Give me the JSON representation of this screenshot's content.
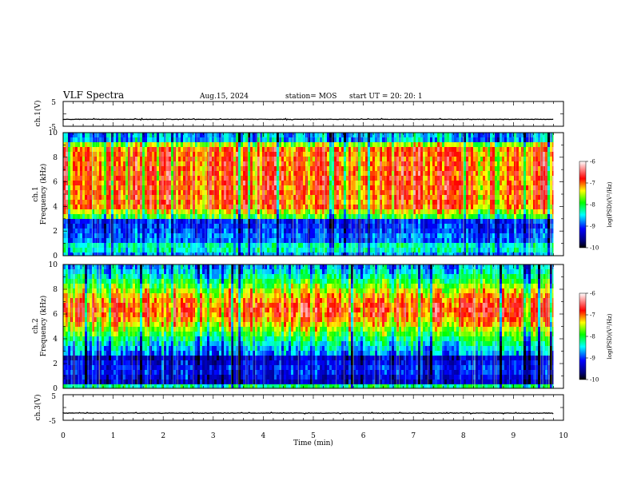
{
  "header": {
    "title": "VLF Spectra",
    "date": "Aug.15, 2024",
    "station": "station= MOS",
    "start_ut": "start  UT  =   20: 20: 1"
  },
  "chart_data": [
    {
      "type": "line",
      "panel": "ch1-voltage",
      "ylabel": "ch.1(V)",
      "ylim": [
        -5,
        5
      ],
      "yticks": [
        "5",
        "-5"
      ],
      "xlim": [
        0,
        10
      ],
      "series": [
        {
          "x": [
            0,
            9.8
          ],
          "values": [
            -2.2,
            -2.2
          ]
        }
      ]
    },
    {
      "type": "heatmap",
      "panel": "ch1-spectrogram",
      "ylabel_line1": "ch.1",
      "ylabel_line2": "Frequency (kHz)",
      "ylim": [
        0,
        10
      ],
      "yticks": [
        "0",
        "2",
        "4",
        "6",
        "8",
        "10"
      ],
      "xlim": [
        0,
        10
      ],
      "data_end_min": 9.8,
      "colorbar": {
        "label": "log(PSD)(V²/Hz)",
        "range": [
          -10,
          -6
        ],
        "ticks": [
          "-6",
          "-7",
          "-8",
          "-9",
          "-10"
        ]
      }
    },
    {
      "type": "heatmap",
      "panel": "ch2-spectrogram",
      "ylabel_line1": "ch.2",
      "ylabel_line2": "Frequency (kHz)",
      "ylim": [
        0,
        10
      ],
      "yticks": [
        "0",
        "2",
        "4",
        "6",
        "8",
        "10"
      ],
      "xlim": [
        0,
        10
      ],
      "data_end_min": 9.8,
      "colorbar": {
        "label": "log(PSD)(V²/Hz)",
        "range": [
          -10,
          -6
        ],
        "ticks": [
          "-6",
          "-7",
          "-8",
          "-9",
          "-10"
        ]
      }
    },
    {
      "type": "line",
      "panel": "ch3-voltage",
      "ylabel": "ch.3(V)",
      "ylim": [
        -5,
        5
      ],
      "yticks": [
        "5",
        "-5"
      ],
      "xlim": [
        0,
        10
      ],
      "xlabel": "Time  (min)",
      "xticks": [
        "0",
        "1",
        "2",
        "3",
        "4",
        "5",
        "6",
        "7",
        "8",
        "9",
        "10"
      ],
      "series": [
        {
          "x": [
            0,
            9.8
          ],
          "values": [
            -2.2,
            -2.2
          ]
        }
      ]
    }
  ],
  "colors": {
    "axis": "#000000",
    "trace": "#000000",
    "colormap": [
      "#000066",
      "#0000ff",
      "#00ffff",
      "#00ff00",
      "#ffff00",
      "#ff0000",
      "#ffffff"
    ]
  }
}
